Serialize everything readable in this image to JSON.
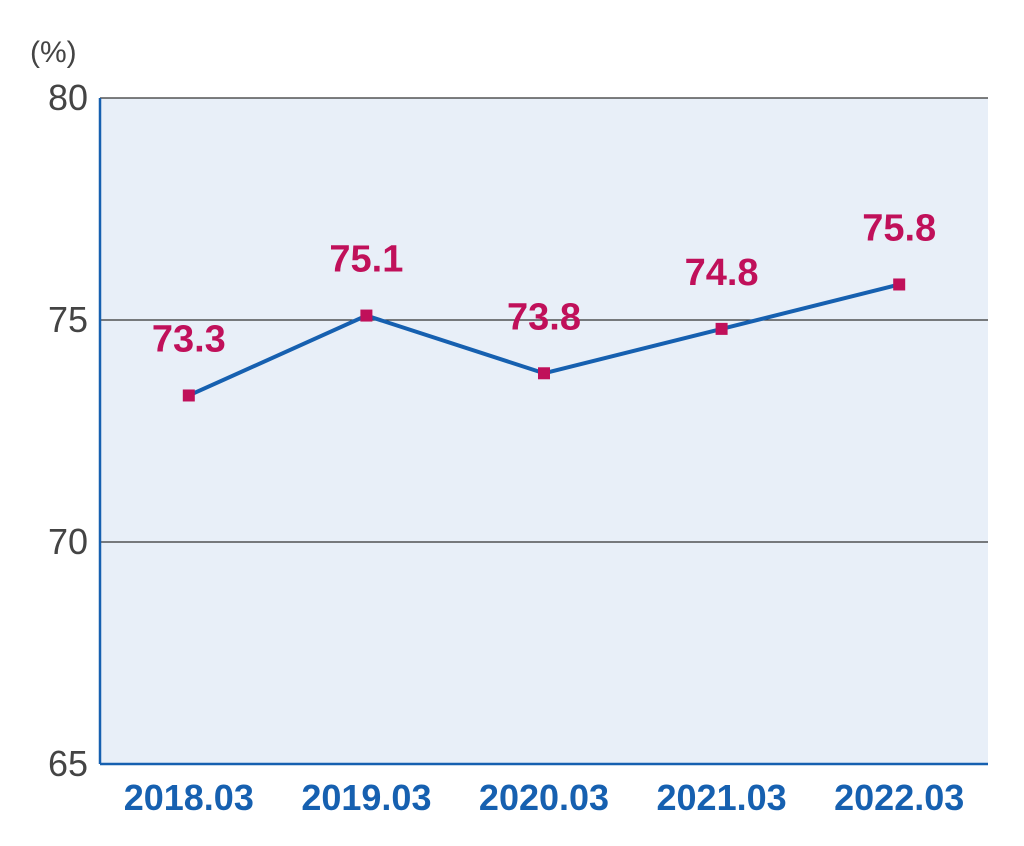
{
  "chart_data": {
    "type": "line",
    "title": "",
    "xlabel": "",
    "ylabel": "",
    "unit": "(%)",
    "categories": [
      "2018.03",
      "2019.03",
      "2020.03",
      "2021.03",
      "2022.03"
    ],
    "values": [
      73.3,
      75.1,
      73.8,
      74.8,
      75.8
    ],
    "value_labels": [
      "73.3",
      "75.1",
      "73.8",
      "74.8",
      "75.8"
    ],
    "ylim": [
      65,
      80
    ],
    "yticks": [
      65,
      70,
      75,
      80
    ],
    "ytick_labels": [
      "65",
      "70",
      "75",
      "80"
    ],
    "grid": true,
    "colors": {
      "plot_background": "#e8eff8",
      "line": "#1660b0",
      "marker": "#c0105a",
      "data_label": "#c0105a",
      "x_tick_label": "#1660b0",
      "y_tick_label": "#444444",
      "gridline": "#333333"
    }
  }
}
